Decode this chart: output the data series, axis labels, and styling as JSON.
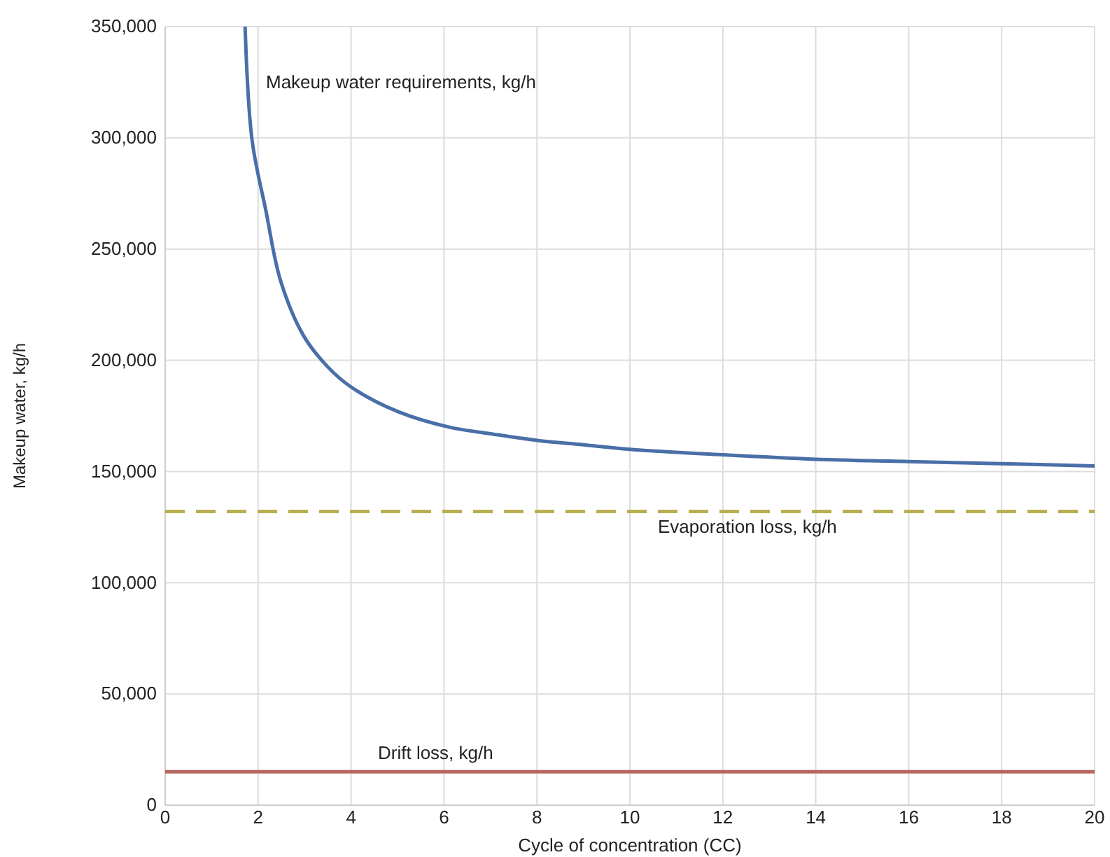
{
  "chart_data": {
    "type": "line",
    "xlabel": "Cycle of concentration (CC)",
    "ylabel": "Makeup water, kg/h",
    "xlim": [
      0,
      20
    ],
    "xticks": [
      0,
      2,
      4,
      6,
      8,
      10,
      12,
      14,
      16,
      18,
      20
    ],
    "ylim": [
      0,
      350000
    ],
    "yticks": [
      {
        "value": 0,
        "label": "0"
      },
      {
        "value": 50000,
        "label": "50,000"
      },
      {
        "value": 100000,
        "label": "100,000"
      },
      {
        "value": 150000,
        "label": "150,000"
      },
      {
        "value": 200000,
        "label": "200,000"
      },
      {
        "value": 250000,
        "label": "250,000"
      },
      {
        "value": 300000,
        "label": "300,000"
      },
      {
        "value": 350000,
        "label": "350,000"
      }
    ],
    "grid": true,
    "line_style": "solid",
    "marker": "none",
    "series": [
      {
        "name": "Makeup water requirements, kg/h",
        "color": "#4a6fa8",
        "x": [
          1.72,
          1.87,
          2.17,
          2.48,
          2.98,
          3.5,
          4,
          5,
          6.1,
          7,
          8,
          9,
          10,
          12,
          14,
          16,
          18,
          20
        ],
        "values": [
          350000,
          299000,
          267000,
          236000,
          211000,
          197000,
          188000,
          177000,
          170000,
          167000,
          164000,
          162000,
          160000,
          157500,
          155500,
          154500,
          153500,
          152500
        ]
      },
      {
        "name": "Evaporation loss, kg/h",
        "color": "#b8b050",
        "line_style": "dashed",
        "x": [
          0,
          20
        ],
        "values": [
          132000,
          132000
        ]
      },
      {
        "name": "Drift loss, kg/h",
        "color": "#b5675f",
        "x": [
          0,
          20
        ],
        "values": [
          15000,
          15000
        ]
      }
    ]
  }
}
